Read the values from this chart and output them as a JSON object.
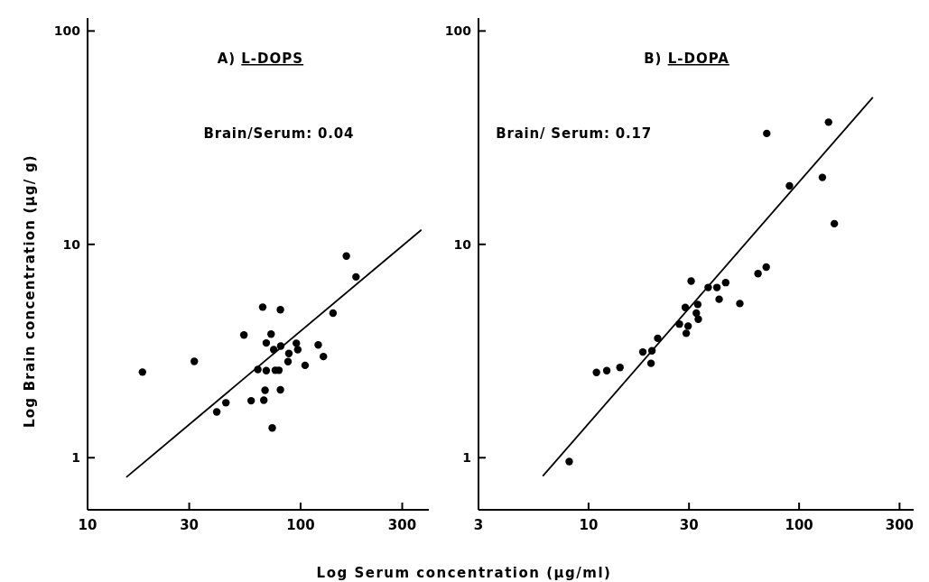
{
  "chart_data": [
    {
      "type": "scatter",
      "title": "A) L-DOPS",
      "annotations": [
        "Brain/Serum: 0.04"
      ],
      "xlabel": "Log Serum concentration  (µg/ml)",
      "ylabel": "Log Brain concentration  (µg/ g)",
      "log": "xy",
      "xlim": [
        10,
        400
      ],
      "ylim": [
        0.57,
        115
      ],
      "xticks": [
        10,
        30,
        100,
        300
      ],
      "yticks": [
        1,
        10,
        100
      ],
      "series": [
        {
          "marker": "circle",
          "color": "#000000",
          "x": [
            18.1,
            31.7,
            40.4,
            44.6,
            54.2,
            58.6,
            63.0,
            66.4,
            67.2,
            68.1,
            69.0,
            69.0,
            72.7,
            73.6,
            74.8,
            76.1,
            79.1,
            80.4,
            80.4,
            80.7,
            87.3,
            88.1,
            95.5,
            97.0,
            105,
            121,
            128,
            142,
            164,
            182
          ],
          "values": [
            2.52,
            2.83,
            1.64,
            1.81,
            3.76,
            1.85,
            2.59,
            5.08,
            1.86,
            2.07,
            2.56,
            3.45,
            3.8,
            1.38,
            3.21,
            2.57,
            2.57,
            4.94,
            2.08,
            3.34,
            2.82,
            3.08,
            3.44,
            3.21,
            2.71,
            3.38,
            2.98,
            4.76,
            8.81,
            7.04
          ]
        },
        {
          "type": "line",
          "color": "#000000",
          "x": [
            15.2,
            369
          ],
          "values": [
            0.81,
            11.7
          ]
        }
      ]
    },
    {
      "type": "scatter",
      "title": "B) L-DOPA",
      "annotations": [
        "Brain/ Serum: 0.17"
      ],
      "log": "xy",
      "xlim": [
        3,
        350
      ],
      "ylim": [
        0.57,
        115
      ],
      "xticks": [
        3,
        10,
        30,
        100,
        300
      ],
      "yticks": [
        1,
        10,
        100
      ],
      "series": [
        {
          "marker": "circle",
          "color": "#000000",
          "x": [
            8.09,
            10.9,
            12.2,
            14.1,
            18.1,
            19.8,
            20.0,
            21.3,
            27.0,
            28.8,
            29.1,
            29.7,
            30.7,
            32.5,
            33.0,
            33.2,
            37.0,
            40.7,
            41.7,
            44.8,
            52.3,
            63.8,
            69.8,
            70.2,
            90,
            129,
            138,
            147
          ],
          "values": [
            0.96,
            2.51,
            2.56,
            2.65,
            3.13,
            2.77,
            3.17,
            3.63,
            4.23,
            5.06,
            3.83,
            4.14,
            6.73,
            4.76,
            5.23,
            4.46,
            6.28,
            6.28,
            5.53,
            6.62,
            5.28,
            7.29,
            7.82,
            33.1,
            18.8,
            20.6,
            37.4,
            12.5
          ]
        },
        {
          "type": "line",
          "color": "#000000",
          "x": [
            6.06,
            224
          ],
          "values": [
            0.82,
            48.9
          ]
        }
      ]
    }
  ]
}
